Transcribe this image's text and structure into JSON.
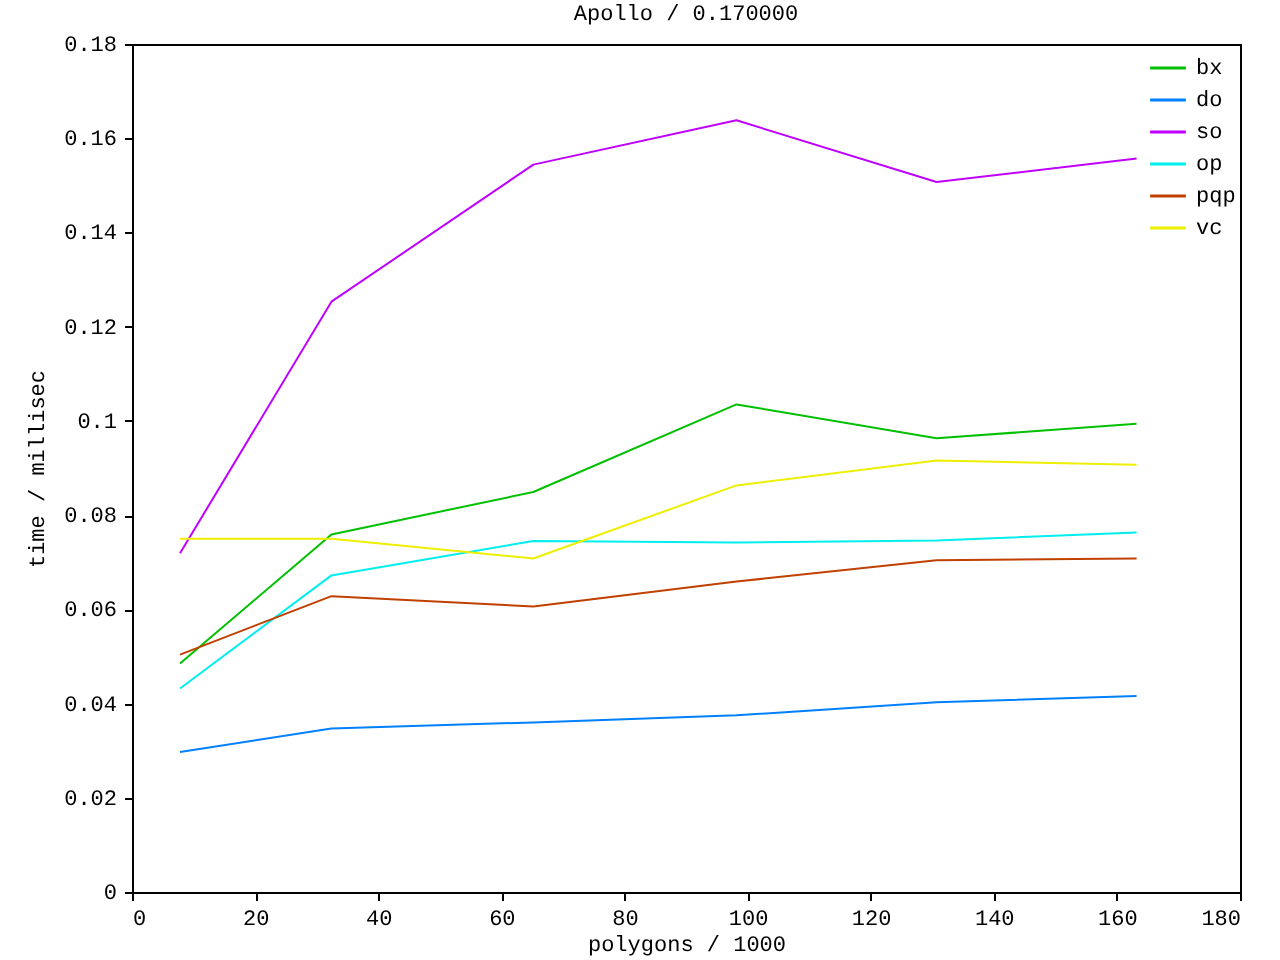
{
  "chart_data": {
    "type": "line",
    "title": "Apollo / 0.170000",
    "xlabel": "polygons / 1000",
    "ylabel": "time / millisec",
    "x": [
      7.8,
      32.4,
      65.2,
      98.2,
      130.7,
      163.2
    ],
    "xlim": [
      0,
      180
    ],
    "xticks": [
      0,
      20,
      40,
      60,
      80,
      100,
      120,
      140,
      160,
      180
    ],
    "ylim": [
      0,
      0.18
    ],
    "yticks": [
      0,
      0.02,
      0.04,
      0.06,
      0.08,
      0.1,
      0.12,
      0.14,
      0.16,
      0.18
    ],
    "legend": "top right",
    "series": [
      {
        "name": "bx",
        "color": "#00c000",
        "values": [
          0.0485,
          0.0759,
          0.0849,
          0.1035,
          0.0963,
          0.0994
        ]
      },
      {
        "name": "do",
        "color": "#0080ff",
        "values": [
          0.0297,
          0.0347,
          0.036,
          0.0375,
          0.0403,
          0.0416
        ]
      },
      {
        "name": "so",
        "color": "#c000ff",
        "values": [
          0.0719,
          0.1253,
          0.1544,
          0.1638,
          0.1507,
          0.1557
        ]
      },
      {
        "name": "op",
        "color": "#00eeee",
        "values": [
          0.0432,
          0.0672,
          0.0745,
          0.0742,
          0.0746,
          0.0763
        ]
      },
      {
        "name": "pqp",
        "color": "#c04000",
        "values": [
          0.0504,
          0.0628,
          0.0606,
          0.0659,
          0.0704,
          0.0708
        ]
      },
      {
        "name": "vc",
        "color": "#eeee00",
        "values": [
          0.075,
          0.075,
          0.0708,
          0.0863,
          0.0916,
          0.0907
        ]
      }
    ]
  }
}
